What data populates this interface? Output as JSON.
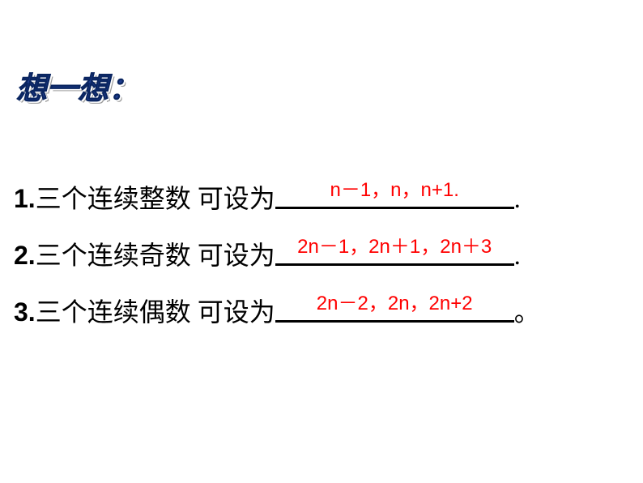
{
  "title": "想一想：",
  "questions": [
    {
      "number": "1.",
      "text": "三个连续整数 可设为",
      "answer": "n－1，n，n+1.",
      "end_punct": "."
    },
    {
      "number": "2.",
      "text": "三个连续奇数 可设为",
      "answer": "2n－1，2n＋1，2n＋3",
      "end_punct": "."
    },
    {
      "number": "3.",
      "text": "三个连续偶数 可设为",
      "answer": "2n－2，2n，2n+2",
      "end_punct": "。"
    }
  ],
  "styling": {
    "title_color": "#1f3d8f",
    "answer_color": "#ff0000",
    "text_color": "#000000",
    "background_color": "#ffffff",
    "title_fontsize": 38,
    "question_fontsize": 32,
    "answer_fontsize": 24,
    "underline_width": 295
  }
}
